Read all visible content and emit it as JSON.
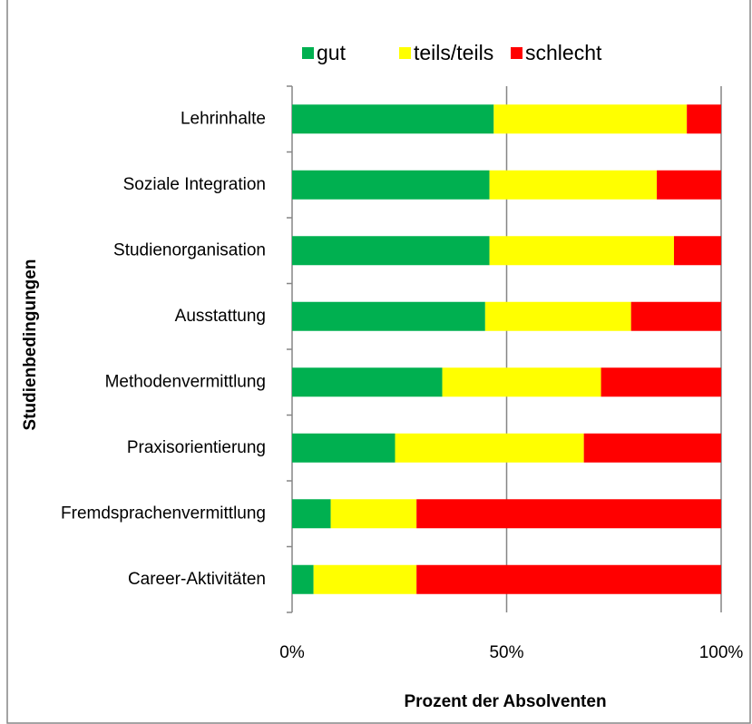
{
  "chart_data": {
    "type": "stacked_bar_horizontal",
    "y_label": "Studienbedingungen",
    "x_label": "Prozent der Absolventen",
    "categories": [
      "Lehrinhalte",
      "Soziale Integration",
      "Studienorganisation",
      "Ausstattung",
      "Methodenvermittlung",
      "Praxisorientierung",
      "Fremdsprachenvermittlung",
      "Career-Aktivitäten"
    ],
    "series": [
      {
        "name": "gut",
        "color": "#00b050",
        "values": [
          47,
          46,
          46,
          45,
          35,
          24,
          9,
          5
        ]
      },
      {
        "name": "teils/teils",
        "color": "#ffff00",
        "values": [
          45,
          39,
          43,
          34,
          37,
          44,
          20,
          24
        ]
      },
      {
        "name": "schlecht",
        "color": "#ff0000",
        "values": [
          8,
          15,
          11,
          21,
          28,
          32,
          71,
          71
        ]
      }
    ],
    "xlim": [
      0,
      100
    ],
    "xticks": [
      {
        "value": 0,
        "label": "0%"
      },
      {
        "value": 50,
        "label": "50%"
      },
      {
        "value": 100,
        "label": "100%"
      }
    ],
    "grid": true,
    "legend": "top"
  }
}
